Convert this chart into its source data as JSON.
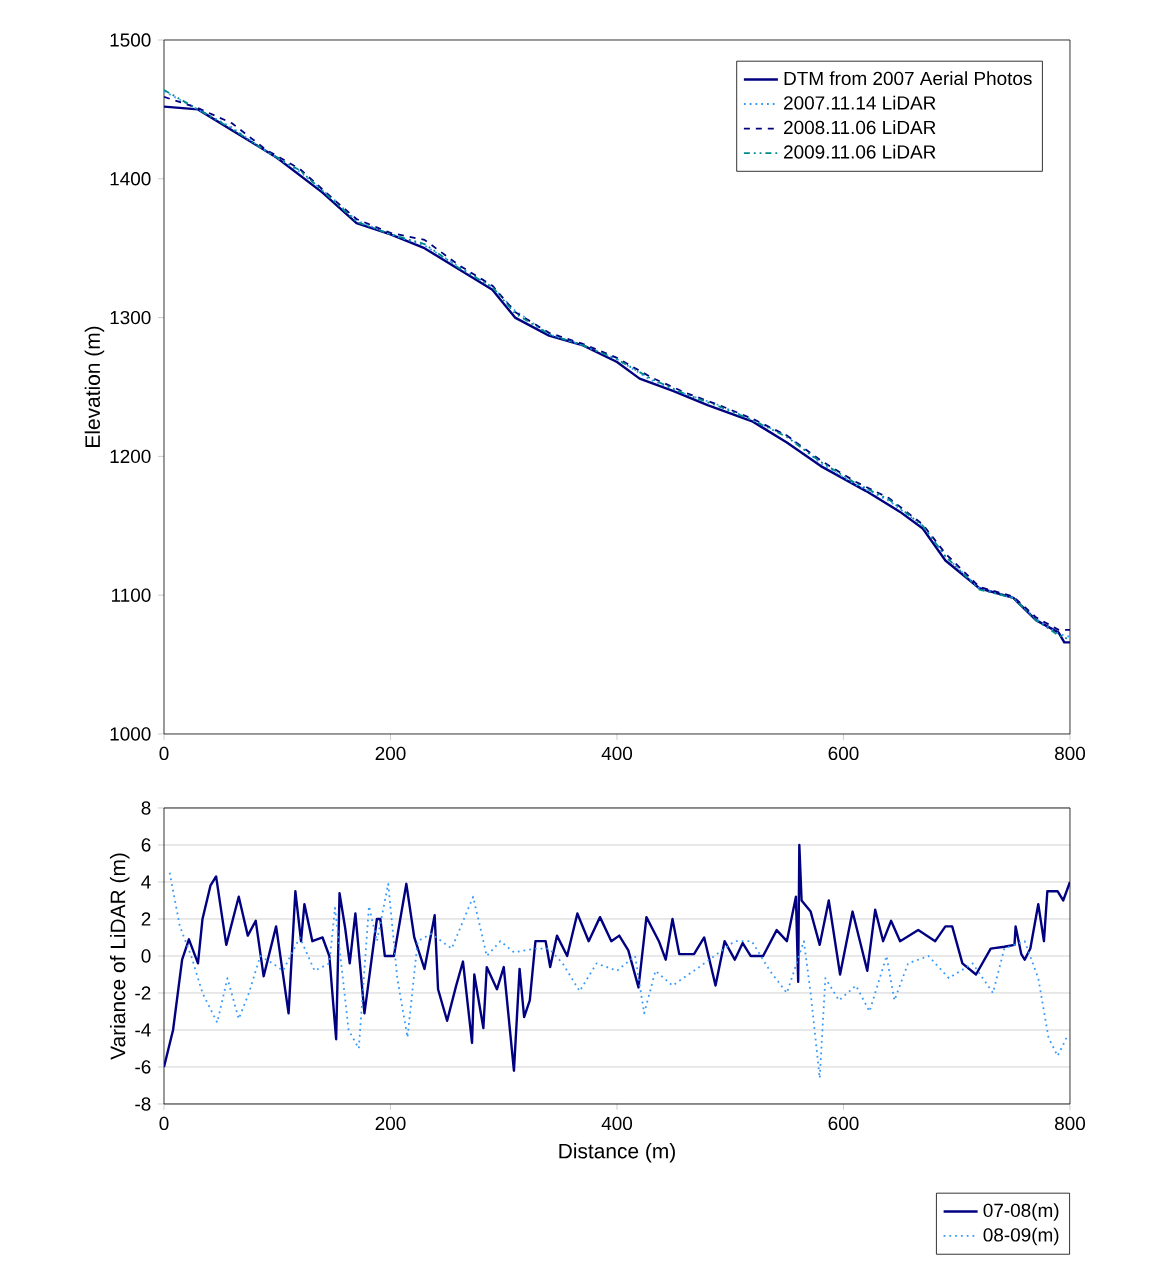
{
  "chart_data": [
    {
      "type": "line",
      "ylabel": "Elevation (m)",
      "xlim": [
        0,
        800
      ],
      "ylim": [
        1000,
        1500
      ],
      "xticks": [
        0,
        200,
        400,
        600,
        800
      ],
      "yticks": [
        1000,
        1100,
        1200,
        1300,
        1400,
        1500
      ],
      "grid": false,
      "legend": "top right",
      "series": [
        {
          "name": "DTM from 2007 Aerial Photos",
          "color": "#000080",
          "line_style": "solid",
          "x": [
            0,
            30,
            60,
            100,
            140,
            170,
            200,
            230,
            260,
            290,
            310,
            340,
            370,
            400,
            420,
            450,
            480,
            520,
            550,
            580,
            620,
            650,
            670,
            690,
            720,
            750,
            770,
            790,
            795,
            800
          ],
          "values": [
            1452,
            1450,
            1435,
            1415,
            1390,
            1368,
            1360,
            1350,
            1335,
            1320,
            1300,
            1287,
            1280,
            1268,
            1256,
            1247,
            1237,
            1225,
            1210,
            1193,
            1175,
            1160,
            1148,
            1125,
            1105,
            1098,
            1082,
            1073,
            1066,
            1066
          ]
        },
        {
          "name": "2007.11.14 LiDAR",
          "color": "#3399ff",
          "line_style": "dotted",
          "x": [
            0,
            30,
            60,
            90,
            120,
            150,
            170,
            200,
            230,
            260,
            290,
            310,
            340,
            370,
            400,
            430,
            460,
            490,
            520,
            550,
            580,
            610,
            640,
            670,
            690,
            720,
            750,
            770,
            790,
            800
          ],
          "values": [
            1463,
            1450,
            1437,
            1420,
            1405,
            1385,
            1370,
            1360,
            1352,
            1337,
            1322,
            1305,
            1288,
            1280,
            1270,
            1255,
            1245,
            1237,
            1226,
            1215,
            1195,
            1180,
            1168,
            1150,
            1128,
            1105,
            1098,
            1083,
            1072,
            1070
          ]
        },
        {
          "name": "2008.11.06 LiDAR",
          "color": "#000080",
          "line_style": "dashed",
          "x": [
            0,
            30,
            60,
            90,
            120,
            150,
            170,
            200,
            230,
            260,
            290,
            310,
            340,
            370,
            400,
            430,
            460,
            490,
            520,
            550,
            580,
            610,
            640,
            670,
            690,
            720,
            750,
            770,
            790,
            800
          ],
          "values": [
            1459,
            1451,
            1440,
            1421,
            1407,
            1385,
            1371,
            1361,
            1356,
            1338,
            1323,
            1304,
            1289,
            1281,
            1271,
            1257,
            1246,
            1237,
            1227,
            1215,
            1197,
            1182,
            1170,
            1151,
            1130,
            1106,
            1099,
            1084,
            1075,
            1075
          ]
        },
        {
          "name": "2009.11.06 LiDAR",
          "color": "#008b8b",
          "line_style": "dashdotted",
          "x": [
            0,
            30,
            60,
            90,
            120,
            150,
            170,
            200,
            230,
            260,
            290,
            310,
            340,
            370,
            400,
            430,
            460,
            490,
            520,
            550,
            580,
            610,
            640,
            670,
            690,
            720,
            750,
            770,
            790,
            800
          ],
          "values": [
            1464,
            1450,
            1436,
            1420,
            1406,
            1384,
            1369,
            1360,
            1353,
            1336,
            1322,
            1303,
            1288,
            1280,
            1270,
            1256,
            1245,
            1236,
            1226,
            1214,
            1196,
            1181,
            1169,
            1150,
            1128,
            1104,
            1098,
            1082,
            1071,
            1068
          ]
        }
      ]
    },
    {
      "type": "line",
      "xlabel": "Distance (m)",
      "ylabel": "Variance of LiDAR (m)",
      "xlim": [
        0,
        800
      ],
      "ylim": [
        -8,
        8
      ],
      "xticks": [
        0,
        200,
        400,
        600,
        800
      ],
      "yticks": [
        -8,
        -6,
        -4,
        -2,
        0,
        2,
        4,
        6,
        8
      ],
      "grid": "y",
      "legend": "bottom right",
      "series": [
        {
          "name": "07-08(m)",
          "color": "#000080",
          "line_style": "solid",
          "x": [
            0,
            8,
            16,
            22,
            30,
            34,
            41,
            46,
            55,
            63,
            66,
            74,
            81,
            88,
            99,
            110,
            116,
            121,
            124,
            131,
            140,
            146,
            152,
            155,
            160,
            164,
            169,
            177,
            188,
            191,
            195,
            203,
            214,
            221,
            230,
            239,
            242,
            250,
            258,
            264,
            272,
            274,
            282,
            285,
            294,
            300,
            309,
            314,
            318,
            323,
            328,
            337,
            341,
            347,
            356,
            365,
            375,
            385,
            395,
            402,
            410,
            419,
            426,
            437,
            443,
            449,
            455,
            468,
            477,
            487,
            495,
            504,
            511,
            518,
            529,
            541,
            550,
            558,
            560,
            561,
            563,
            571,
            579,
            587,
            597,
            608,
            621,
            628,
            635,
            642,
            650,
            666,
            681,
            690,
            696,
            705,
            717,
            730,
            742,
            751,
            752,
            757,
            760,
            765,
            772,
            777,
            780,
            789,
            794,
            800
          ],
          "values": [
            -6,
            -4,
            -0.2,
            0.9,
            -0.4,
            2,
            3.8,
            4.3,
            0.6,
            2.5,
            3.2,
            1.1,
            1.9,
            -1.1,
            1.6,
            -3.1,
            3.5,
            0.8,
            2.8,
            0.8,
            1,
            0,
            -4.5,
            3.4,
            1.5,
            -0.4,
            2.3,
            -3.1,
            2,
            2,
            0,
            0,
            3.9,
            1,
            -0.7,
            2.2,
            -1.8,
            -3.5,
            -1.6,
            -0.3,
            -4.7,
            -1,
            -3.9,
            -0.6,
            -1.8,
            -0.6,
            -6.2,
            -0.7,
            -3.3,
            -2.4,
            0.8,
            0.8,
            -0.6,
            1.1,
            0,
            2.3,
            0.8,
            2.1,
            0.8,
            1.1,
            0.3,
            -1.7,
            2.1,
            0.8,
            -0.2,
            2,
            0.1,
            0.1,
            1,
            -1.6,
            0.8,
            -0.2,
            0.7,
            0,
            0,
            1.4,
            0.8,
            3.2,
            -1.4,
            6,
            3,
            2.4,
            0.6,
            3,
            -1,
            2.4,
            -0.8,
            2.5,
            0.8,
            1.9,
            0.8,
            1.4,
            0.8,
            1.6,
            1.6,
            -0.4,
            -1,
            0.4,
            0.5,
            0.6,
            1.6,
            0.1,
            -0.2,
            0.4,
            2.8,
            0.8,
            3.5,
            3.5,
            3,
            4
          ]
        },
        {
          "name": "08-09(m)",
          "color": "#3399ff",
          "line_style": "dotted",
          "x": [
            5,
            14,
            24,
            34,
            47,
            56,
            66,
            75,
            85,
            96,
            105,
            120,
            133,
            146,
            151,
            163,
            172,
            181,
            188,
            198,
            206,
            215,
            224,
            236,
            245,
            254,
            273,
            285,
            297,
            309,
            328,
            340,
            352,
            367,
            382,
            400,
            416,
            424,
            434,
            449,
            468,
            486,
            504,
            519,
            535,
            550,
            565,
            571,
            579,
            584,
            596,
            611,
            623,
            638,
            645,
            657,
            675,
            693,
            714,
            732,
            742,
            760,
            772,
            781,
            789,
            794,
            797
          ],
          "values": [
            4.5,
            1.6,
            0,
            -2,
            -3.6,
            -1.2,
            -3.4,
            -2,
            0,
            -0.4,
            -0.8,
            1,
            -0.8,
            -0.4,
            2.6,
            -4,
            -5,
            2.7,
            0.8,
            3.9,
            -1.2,
            -4.4,
            0.8,
            1.2,
            0.8,
            0.4,
            3.2,
            0,
            0.8,
            0.2,
            0.4,
            0.4,
            -0.4,
            -1.9,
            -0.4,
            -0.8,
            0,
            -3.1,
            -0.8,
            -1.6,
            -0.8,
            0,
            0.8,
            0.8,
            -0.8,
            -2,
            0.8,
            -2,
            -6.6,
            -1.2,
            -2.4,
            -1.6,
            -3,
            0,
            -2.4,
            -0.4,
            0,
            -1.2,
            -0.4,
            -2,
            0.4,
            0.8,
            -1.2,
            -4.4,
            -5.4,
            -4.8,
            -4.4
          ]
        }
      ]
    }
  ]
}
